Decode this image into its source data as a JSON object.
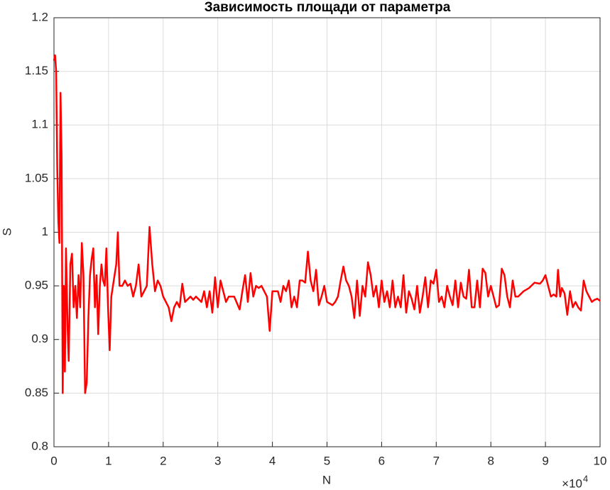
{
  "chart_data": {
    "type": "line",
    "title": "Зависимость площади от параметра",
    "xlabel": "N",
    "ylabel": "S",
    "x_multiplier": "×10",
    "x_exponent": "4",
    "color": "#ff0000",
    "grid": true,
    "xlim": [
      0,
      100000
    ],
    "ylim": [
      0.8,
      1.2
    ],
    "xticks": [
      0,
      {
        "value": 10000,
        "label": "1"
      },
      {
        "value": 20000,
        "label": "2"
      },
      {
        "value": 30000,
        "label": "3"
      },
      {
        "value": 40000,
        "label": "4"
      },
      {
        "value": 50000,
        "label": "5"
      },
      {
        "value": 60000,
        "label": "6"
      },
      {
        "value": 70000,
        "label": "7"
      },
      {
        "value": 80000,
        "label": "8"
      },
      {
        "value": 90000,
        "label": "9"
      },
      {
        "value": 100000,
        "label": "10"
      }
    ],
    "yticks": [
      0.8,
      0.85,
      0.9,
      0.95,
      1,
      1.05,
      1.1,
      1.15,
      1.2
    ],
    "x": [
      0,
      200,
      400,
      600,
      800,
      1000,
      1200,
      1400,
      1600,
      1800,
      2000,
      2200,
      2500,
      2700,
      3000,
      3300,
      3600,
      3900,
      4200,
      4500,
      4800,
      5100,
      5400,
      5700,
      6000,
      6300,
      6600,
      6900,
      7200,
      7500,
      7800,
      8100,
      8400,
      8700,
      9000,
      9300,
      9600,
      9900,
      10200,
      10500,
      10800,
      11100,
      11400,
      11700,
      12000,
      12500,
      13000,
      13500,
      14000,
      14500,
      15000,
      15500,
      16000,
      16500,
      17000,
      17500,
      18000,
      18500,
      19000,
      19500,
      20000,
      21000,
      21500,
      22000,
      22500,
      23000,
      23500,
      24000,
      25000,
      25500,
      26000,
      27000,
      27500,
      28000,
      28500,
      29000,
      29500,
      30000,
      30500,
      31000,
      31500,
      32000,
      33000,
      34000,
      34500,
      35000,
      35500,
      36000,
      36500,
      37000,
      37500,
      38000,
      38500,
      39000,
      39500,
      40000,
      41000,
      41500,
      42000,
      42500,
      43000,
      43500,
      44000,
      44500,
      45000,
      45500,
      46000,
      46500,
      47000,
      47500,
      48000,
      48500,
      49000,
      49500,
      50000,
      51000,
      51500,
      52000,
      52500,
      53000,
      53500,
      54000,
      54500,
      55000,
      55500,
      56000,
      56500,
      57000,
      57500,
      58000,
      58500,
      59000,
      59500,
      60000,
      60500,
      61000,
      61500,
      62000,
      62500,
      63000,
      63500,
      64000,
      64500,
      65000,
      65500,
      66000,
      66500,
      67000,
      67500,
      68000,
      68500,
      69000,
      69500,
      70000,
      70500,
      71000,
      71500,
      72000,
      72500,
      73000,
      73500,
      74000,
      74500,
      75000,
      75500,
      76000,
      76500,
      77000,
      77500,
      78000,
      78500,
      79000,
      79500,
      80000,
      80500,
      81000,
      81500,
      82000,
      82500,
      83000,
      83500,
      84000,
      84500,
      85000,
      86000,
      87000,
      88000,
      89000,
      89500,
      90000,
      90500,
      91000,
      91500,
      92000,
      92300,
      92700,
      93000,
      93500,
      94000,
      94500,
      95000,
      95500,
      96000,
      96500,
      97000,
      97500,
      98000,
      98500,
      99000,
      99500,
      100000
    ],
    "values": [
      1.16,
      1.165,
      1.15,
      1.06,
      1.01,
      0.99,
      1.13,
      1.07,
      0.85,
      0.95,
      0.87,
      0.985,
      0.91,
      0.88,
      0.97,
      0.98,
      0.93,
      0.95,
      0.92,
      0.96,
      0.93,
      0.99,
      0.96,
      0.85,
      0.86,
      0.92,
      0.96,
      0.975,
      0.985,
      0.93,
      0.96,
      0.905,
      0.95,
      0.97,
      0.955,
      0.95,
      0.985,
      0.93,
      0.89,
      0.94,
      0.95,
      0.96,
      0.97,
      1.0,
      0.95,
      0.95,
      0.955,
      0.95,
      0.952,
      0.94,
      0.95,
      0.97,
      0.94,
      0.945,
      0.95,
      1.005,
      0.97,
      0.945,
      0.955,
      0.95,
      0.94,
      0.93,
      0.917,
      0.93,
      0.935,
      0.93,
      0.952,
      0.935,
      0.94,
      0.937,
      0.94,
      0.935,
      0.945,
      0.93,
      0.945,
      0.925,
      0.958,
      0.93,
      0.955,
      0.945,
      0.935,
      0.94,
      0.94,
      0.928,
      0.945,
      0.96,
      0.935,
      0.962,
      0.94,
      0.95,
      0.948,
      0.95,
      0.945,
      0.94,
      0.908,
      0.945,
      0.945,
      0.935,
      0.95,
      0.945,
      0.955,
      0.93,
      0.94,
      0.93,
      0.955,
      0.955,
      0.953,
      0.982,
      0.955,
      0.945,
      0.965,
      0.932,
      0.94,
      0.95,
      0.935,
      0.932,
      0.935,
      0.94,
      0.955,
      0.968,
      0.955,
      0.95,
      0.94,
      0.92,
      0.955,
      0.922,
      0.95,
      0.94,
      0.972,
      0.96,
      0.94,
      0.95,
      0.93,
      0.955,
      0.935,
      0.945,
      0.93,
      0.955,
      0.93,
      0.94,
      0.93,
      0.96,
      0.925,
      0.945,
      0.938,
      0.928,
      0.95,
      0.925,
      0.94,
      0.958,
      0.93,
      0.955,
      0.952,
      0.965,
      0.935,
      0.94,
      0.93,
      0.95,
      0.94,
      0.932,
      0.955,
      0.93,
      0.953,
      0.94,
      0.938,
      0.965,
      0.93,
      0.93,
      0.955,
      0.93,
      0.966,
      0.962,
      0.94,
      0.95,
      0.94,
      0.93,
      0.932,
      0.966,
      0.96,
      0.94,
      0.93,
      0.955,
      0.94,
      0.94,
      0.945,
      0.948,
      0.953,
      0.952,
      0.955,
      0.96,
      0.95,
      0.94,
      0.942,
      0.94,
      0.965,
      0.94,
      0.948,
      0.943,
      0.923,
      0.945,
      0.93,
      0.935,
      0.93,
      0.927,
      0.955,
      0.945,
      0.94,
      0.935,
      0.937,
      0.938,
      0.936
    ]
  }
}
